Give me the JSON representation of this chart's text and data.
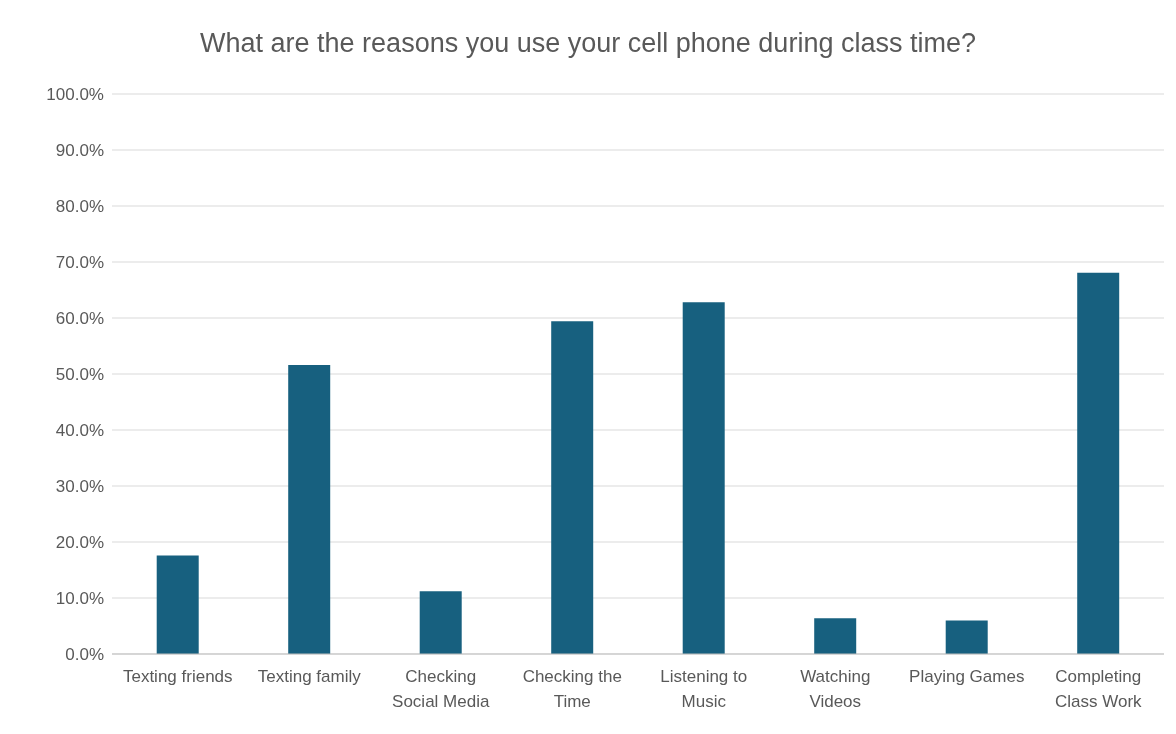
{
  "chart_data": {
    "type": "bar",
    "title": "What are the reasons you use your cell phone during class time?",
    "categories": [
      "Texting friends",
      "Texting family",
      "Checking Social Media",
      "Checking the Time",
      "Listening to Music",
      "Watching Videos",
      "Playing Games",
      "Completing Class Work"
    ],
    "values": [
      17.6,
      51.6,
      11.2,
      59.4,
      62.8,
      6.4,
      6.0,
      68.1
    ],
    "color": "#17607f",
    "ylim": [
      0,
      100
    ],
    "yticks": [
      {
        "value": 0,
        "label": "0.0%"
      },
      {
        "value": 10,
        "label": "10.0%"
      },
      {
        "value": 20,
        "label": "20.0%"
      },
      {
        "value": 30,
        "label": "30.0%"
      },
      {
        "value": 40,
        "label": "40.0%"
      },
      {
        "value": 50,
        "label": "50.0%"
      },
      {
        "value": 60,
        "label": "60.0%"
      },
      {
        "value": 70,
        "label": "70.0%"
      },
      {
        "value": 80,
        "label": "80.0%"
      },
      {
        "value": 90,
        "label": "90.0%"
      },
      {
        "value": 100,
        "label": "100.0%"
      }
    ],
    "grid": "y"
  }
}
